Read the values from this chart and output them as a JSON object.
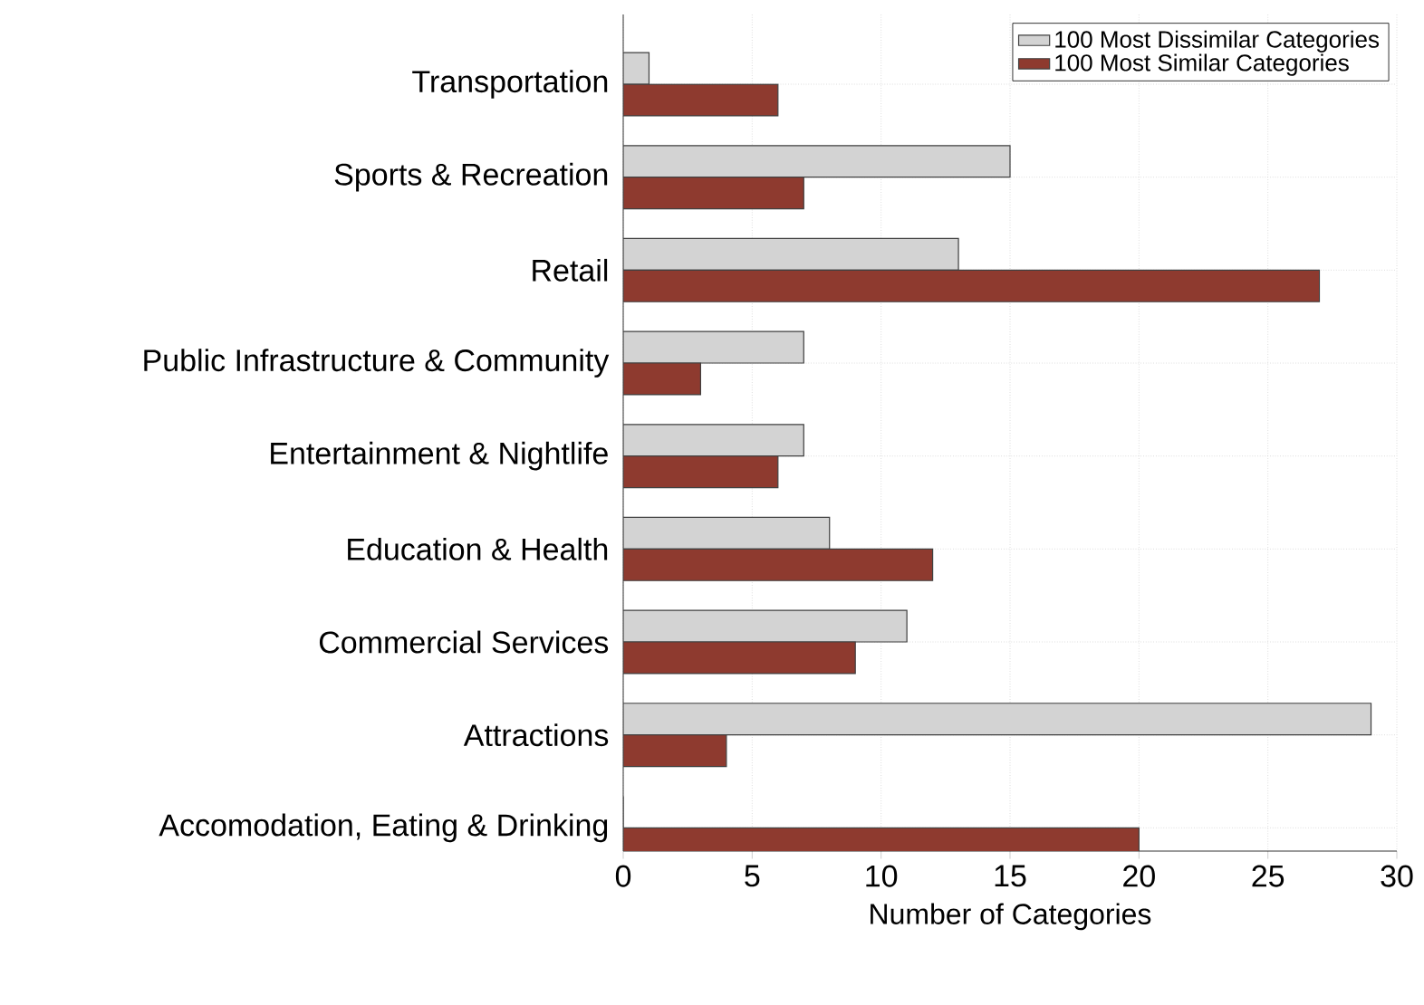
{
  "chart_data": {
    "type": "bar",
    "orientation": "horizontal",
    "xlabel": "Number of Categories",
    "categories": [
      "Transportation",
      "Sports & Recreation",
      "Retail",
      "Public Infrastructure & Community",
      "Entertainment & Nightlife",
      "Education & Health",
      "Commercial Services",
      "Attractions",
      "Accomodation, Eating & Drinking"
    ],
    "series": [
      {
        "name": "100 Most Dissimilar Categories",
        "color": "#d3d3d3",
        "values": [
          1,
          15,
          13,
          7,
          7,
          8,
          11,
          29,
          0
        ]
      },
      {
        "name": "100 Most Similar Categories",
        "color": "#8e3a2f",
        "values": [
          6,
          7,
          27,
          3,
          6,
          12,
          9,
          4,
          20
        ]
      }
    ],
    "xlim": [
      0,
      30
    ],
    "xticks": [
      0,
      5,
      10,
      15,
      20,
      25,
      30
    ],
    "grid": true,
    "legend": "top right"
  }
}
